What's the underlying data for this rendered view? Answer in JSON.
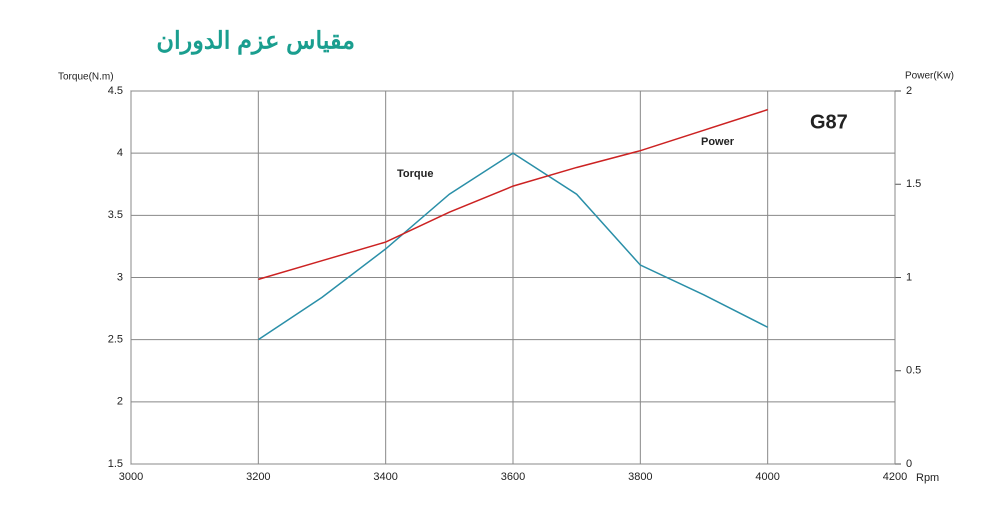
{
  "chart_data": {
    "type": "line",
    "title": "مقياس عزم الدوران",
    "y_label": "Torque(N.m)",
    "y2_label": "Power(Kw)",
    "x_label": "Rpm",
    "annotations": [
      "Torque",
      "Power",
      "G87"
    ],
    "x": [
      3200,
      3300,
      3400,
      3500,
      3600,
      3700,
      3800,
      3900,
      4000
    ],
    "series": [
      {
        "name": "Torque",
        "color": "#2a8fa8",
        "values": [
          2.5,
          2.84,
          3.23,
          3.67,
          4.0,
          3.67,
          3.1,
          2.86,
          2.6
        ]
      },
      {
        "name": "Power",
        "color": "#cc2222",
        "axis": "y2",
        "values": [
          0.99,
          1.09,
          1.19,
          1.35,
          1.49,
          1.59,
          1.68,
          1.79,
          1.9
        ]
      }
    ],
    "xlim": [
      3000,
      4200
    ],
    "xticks": [
      3000,
      3200,
      3400,
      3600,
      3800,
      4000,
      4200
    ],
    "ylim": [
      1.5,
      4.5
    ],
    "yticks": [
      1.5,
      2,
      2.5,
      3,
      3.5,
      4,
      4.5
    ],
    "y2lim": [
      0,
      2
    ],
    "y2ticks": [
      0,
      0.5,
      1,
      1.5,
      2
    ],
    "grid": true
  }
}
